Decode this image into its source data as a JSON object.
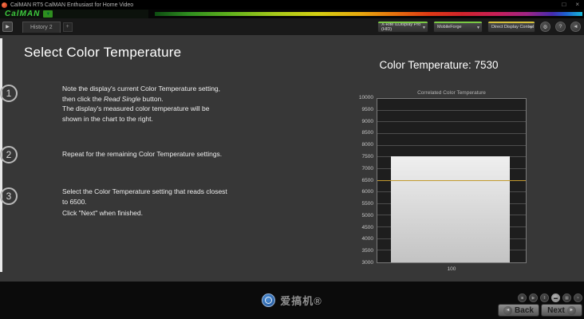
{
  "window": {
    "title": "CalMAN RT5 CalMAN Enthusiast for Home Video",
    "restore_glyph": "□",
    "close_glyph": "×"
  },
  "brand": {
    "logo_text": "CalMAN",
    "dropdown_glyph": "▼"
  },
  "tabbar": {
    "expand_glyph": "▶",
    "tab_label": "History 2",
    "add_glyph": "+"
  },
  "toolbar": {
    "meter": {
      "line1": "X-Rite i1Display Pro",
      "line2": "(HID)",
      "status_color": "#7ac943"
    },
    "source": {
      "line1": "MobileForge",
      "status_color": "#7ac943"
    },
    "display_control": {
      "line1": "Direct Display Control",
      "status_color": "#d4c03a"
    },
    "caret_glyph": "▼",
    "settings_glyph": "⚙",
    "help_glyph": "?",
    "exit_glyph": "◄"
  },
  "instructions": {
    "title": "Select Color Temperature",
    "steps": {
      "s1": {
        "num": "1",
        "l1": "Note the display's current Color Temperature setting,",
        "l2a": "then click the ",
        "l2b": "Read Single",
        "l2c": " button.",
        "l3": "The display's measured color temperature will be",
        "l4": "shown in the chart to the right."
      },
      "s2": {
        "num": "2",
        "l1": "Repeat for the remaining Color Temperature settings."
      },
      "s3": {
        "num": "3",
        "l1": "Select the Color Temperature setting that reads closest",
        "l2": "to 6500.",
        "l3": "Click \"Next\" when finished."
      }
    }
  },
  "chart_data": {
    "type": "bar",
    "heading": "Color Temperature: 7530",
    "title": "Correlated Color Temperature",
    "categories": [
      "100"
    ],
    "values": [
      7530
    ],
    "measured_value": 7530,
    "target_line": 6500,
    "ylim": [
      3000,
      10000
    ],
    "ytick_step": 500,
    "xlabel": "",
    "ylabel": "",
    "grid": true,
    "bar_color": "#e0e0e0",
    "target_color": "#c29a2e"
  },
  "footer": {
    "watermark_text": "爱搞机®",
    "transport": {
      "stop": "■",
      "play": "▶",
      "pause": "‖",
      "dash": "▬",
      "grid": "▦",
      "dot": "•"
    },
    "back_label": "Back",
    "next_label": "Next",
    "back_arrow": "◄",
    "next_arrow": "►"
  }
}
